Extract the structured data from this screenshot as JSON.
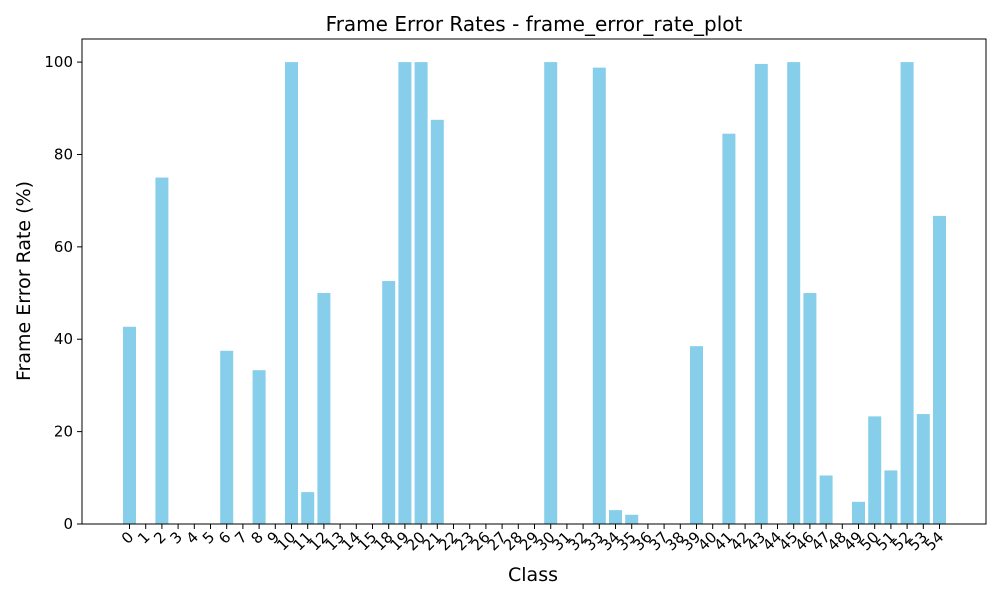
{
  "chart_data": {
    "type": "bar",
    "title": "Frame Error Rates - frame_error_rate_plot",
    "xlabel": "Class",
    "ylabel": "Frame Error Rate (%)",
    "ylim": [
      0,
      105
    ],
    "yticks": [
      0,
      20,
      40,
      60,
      80,
      100
    ],
    "grid": false,
    "bar_color": "#87ceeb",
    "categories": [
      "0",
      "1",
      "2",
      "3",
      "4",
      "5",
      "6",
      "7",
      "8",
      "9",
      "10",
      "11",
      "12",
      "13",
      "14",
      "15",
      "18",
      "19",
      "20",
      "21",
      "22",
      "23",
      "26",
      "27",
      "28",
      "29",
      "30",
      "31",
      "32",
      "33",
      "34",
      "35",
      "36",
      "37",
      "38",
      "39",
      "40",
      "41",
      "42",
      "43",
      "44",
      "45",
      "46",
      "47",
      "48",
      "49",
      "50",
      "51",
      "52",
      "53",
      "54"
    ],
    "values": [
      42.7,
      0,
      75,
      0,
      0,
      0,
      37.5,
      0,
      33.3,
      0,
      100,
      6.9,
      50,
      0,
      0,
      0,
      52.6,
      100,
      100,
      87.5,
      0,
      0,
      0,
      0,
      0,
      0,
      100,
      0,
      0,
      98.8,
      3,
      2,
      0,
      0,
      0,
      38.5,
      0,
      84.5,
      0,
      99.6,
      0,
      100,
      50,
      10.5,
      0,
      4.8,
      23.3,
      11.6,
      100,
      23.8,
      66.7
    ]
  }
}
